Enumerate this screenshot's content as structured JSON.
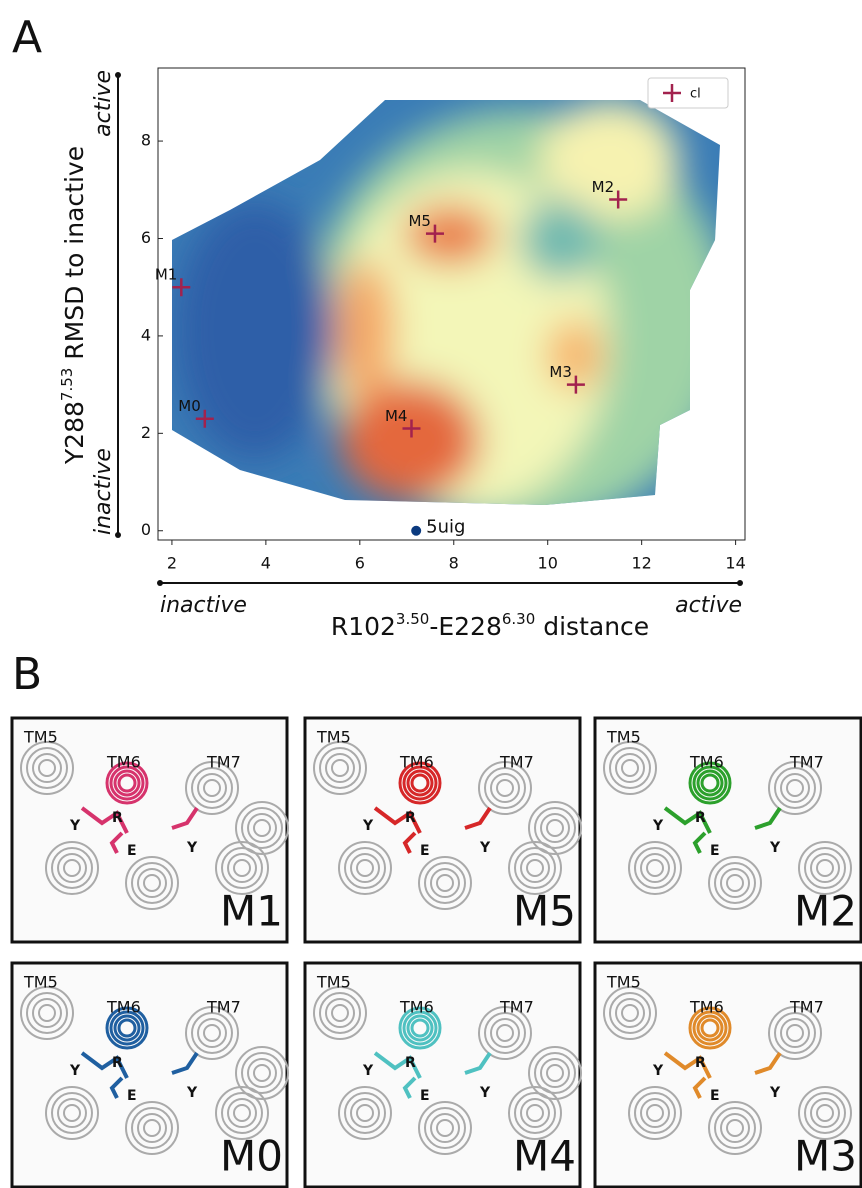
{
  "panel_labels": [
    "A",
    "B"
  ],
  "chart_data": {
    "type": "scatter",
    "xlabel": {
      "main": "R102",
      "sup1": "3.50",
      "mid": "-E228",
      "sup2": "6.30",
      "end": " distance"
    },
    "ylabel": {
      "main": "Y288",
      "sup": "7.53",
      "end": " RMSD to inactive"
    },
    "x_annotations": [
      "inactive",
      "active"
    ],
    "y_annotations": [
      "inactive",
      "active"
    ],
    "xlim": [
      1.81,
      14.2
    ],
    "ylim": [
      -0.19,
      9.5
    ],
    "xticks": [
      2,
      4,
      6,
      8,
      10,
      12,
      14
    ],
    "yticks": [
      0,
      2,
      4,
      6,
      8
    ],
    "series": [
      {
        "name": "cl",
        "color": "#a2224e",
        "x": [
          2.7,
          2.2,
          7.6,
          7.1,
          10.6,
          11.5
        ],
        "values": [
          2.3,
          5.0,
          6.1,
          2.1,
          3.0,
          6.8
        ],
        "point_labels": [
          "M0",
          "M1",
          "M5",
          "M4",
          "M3",
          "M2"
        ]
      }
    ],
    "reference": {
      "label": "5uig",
      "x": 7.2,
      "y": 0,
      "color": "#0b3a7f"
    },
    "legend": "upper right"
  },
  "panels": [
    {
      "name": "M1",
      "color": "#d6336c",
      "labels": [
        "TM5",
        "TM6",
        "TM7",
        "R",
        "Y",
        "E",
        "Y"
      ]
    },
    {
      "name": "M5",
      "color": "#d62728",
      "labels": [
        "TM5",
        "TM6",
        "TM7",
        "R",
        "Y",
        "E",
        "Y"
      ]
    },
    {
      "name": "M2",
      "color": "#2ca02c",
      "labels": [
        "TM5",
        "TM6",
        "TM7",
        "R",
        "Y",
        "E",
        "Y"
      ]
    },
    {
      "name": "M0",
      "color": "#1f5fa0",
      "labels": [
        "TM5",
        "TM6",
        "TM7",
        "R",
        "Y",
        "E",
        "Y"
      ]
    },
    {
      "name": "M4",
      "color": "#4fc1c1",
      "labels": [
        "TM5",
        "TM6",
        "TM7",
        "R",
        "Y",
        "E",
        "Y"
      ]
    },
    {
      "name": "M3",
      "color": "#e08a2a",
      "labels": [
        "TM5",
        "TM6",
        "TM7",
        "R",
        "Y",
        "E",
        "Y"
      ]
    }
  ]
}
